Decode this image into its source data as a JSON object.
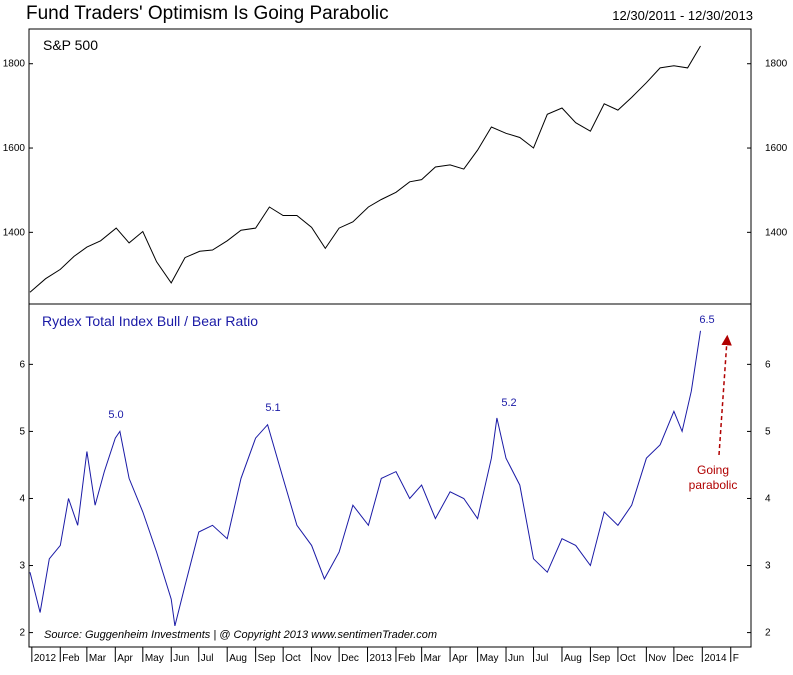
{
  "title": "Fund Traders' Optimism Is Going Parabolic",
  "date_range": "12/30/2011 - 12/30/2013",
  "source": "Source:  Guggenheim Investments  |  @ Copyright 2013  www.sentimenTrader.com",
  "colors": {
    "sp500_line": "#000000",
    "ratio_line": "#1a1aa6",
    "annotation": "#b00000",
    "frame": "#000000"
  },
  "chart_data": [
    {
      "type": "line",
      "title": "S&P 500",
      "x_range": [
        "2011-12-30",
        "2013-12-30"
      ],
      "ylim": [
        1230,
        1880
      ],
      "y_ticks": [
        1400,
        1600,
        1800
      ],
      "y_tick_labels": [
        "1400",
        "1600",
        "1800"
      ],
      "series": [
        {
          "color": "#000000",
          "x": [
            "2011-12-30",
            "2012-01-16",
            "2012-02-01",
            "2012-02-16",
            "2012-03-01",
            "2012-03-16",
            "2012-04-02",
            "2012-04-16",
            "2012-05-01",
            "2012-05-16",
            "2012-06-01",
            "2012-06-16",
            "2012-07-02",
            "2012-07-16",
            "2012-08-01",
            "2012-08-16",
            "2012-09-01",
            "2012-09-16",
            "2012-10-01",
            "2012-10-16",
            "2012-11-01",
            "2012-11-16",
            "2012-12-01",
            "2012-12-16",
            "2013-01-02",
            "2013-01-16",
            "2013-02-01",
            "2013-02-16",
            "2013-03-01",
            "2013-03-16",
            "2013-04-01",
            "2013-04-16",
            "2013-05-01",
            "2013-05-16",
            "2013-06-01",
            "2013-06-16",
            "2013-07-01",
            "2013-07-16",
            "2013-08-01",
            "2013-08-16",
            "2013-09-01",
            "2013-09-16",
            "2013-10-01",
            "2013-10-16",
            "2013-11-01",
            "2013-11-16",
            "2013-12-01",
            "2013-12-16",
            "2013-12-30"
          ],
          "values": [
            1258,
            1290,
            1312,
            1343,
            1365,
            1380,
            1410,
            1375,
            1402,
            1330,
            1280,
            1340,
            1355,
            1358,
            1380,
            1405,
            1410,
            1460,
            1440,
            1440,
            1412,
            1362,
            1410,
            1425,
            1460,
            1478,
            1495,
            1520,
            1525,
            1555,
            1560,
            1550,
            1595,
            1650,
            1635,
            1625,
            1600,
            1680,
            1695,
            1660,
            1640,
            1705,
            1690,
            1720,
            1755,
            1790,
            1795,
            1790,
            1842
          ]
        }
      ]
    },
    {
      "type": "line",
      "title": "Rydex Total Index Bull / Bear Ratio",
      "x_range": [
        "2011-12-30",
        "2013-12-30"
      ],
      "ylim": [
        1.8,
        6.9
      ],
      "y_ticks": [
        2,
        3,
        4,
        5,
        6
      ],
      "y_tick_labels": [
        "2",
        "3",
        "4",
        "5",
        "6"
      ],
      "x_tick_labels": [
        "2012",
        "Feb",
        "Mar",
        "Apr",
        "May",
        "Jun",
        "Jul",
        "Aug",
        "Sep",
        "Oct",
        "Nov",
        "Dec",
        "2013",
        "Feb",
        "Mar",
        "Apr",
        "May",
        "Jun",
        "Jul",
        "Aug",
        "Sep",
        "Oct",
        "Nov",
        "Dec",
        "2014",
        "F"
      ],
      "series": [
        {
          "color": "#1a1aa6",
          "x": [
            "2011-12-30",
            "2012-01-10",
            "2012-01-20",
            "2012-02-01",
            "2012-02-10",
            "2012-02-20",
            "2012-03-01",
            "2012-03-10",
            "2012-03-20",
            "2012-04-01",
            "2012-04-06",
            "2012-04-16",
            "2012-05-01",
            "2012-05-16",
            "2012-06-01",
            "2012-06-05",
            "2012-06-16",
            "2012-07-01",
            "2012-07-16",
            "2012-08-01",
            "2012-08-16",
            "2012-09-01",
            "2012-09-14",
            "2012-10-01",
            "2012-10-16",
            "2012-11-01",
            "2012-11-15",
            "2012-12-01",
            "2012-12-16",
            "2013-01-02",
            "2013-01-16",
            "2013-02-01",
            "2013-02-16",
            "2013-03-01",
            "2013-03-16",
            "2013-04-01",
            "2013-04-16",
            "2013-05-01",
            "2013-05-16",
            "2013-05-22",
            "2013-06-01",
            "2013-06-16",
            "2013-07-01",
            "2013-07-16",
            "2013-08-01",
            "2013-08-16",
            "2013-09-01",
            "2013-09-16",
            "2013-10-01",
            "2013-10-16",
            "2013-11-01",
            "2013-11-16",
            "2013-12-01",
            "2013-12-10",
            "2013-12-20",
            "2013-12-30"
          ],
          "values": [
            2.9,
            2.3,
            3.1,
            3.3,
            4.0,
            3.6,
            4.7,
            3.9,
            4.4,
            4.9,
            5.0,
            4.3,
            3.8,
            3.2,
            2.5,
            2.1,
            2.7,
            3.5,
            3.6,
            3.4,
            4.3,
            4.9,
            5.1,
            4.3,
            3.6,
            3.3,
            2.8,
            3.2,
            3.9,
            3.6,
            4.3,
            4.4,
            4.0,
            4.2,
            3.7,
            4.1,
            4.0,
            3.7,
            4.6,
            5.2,
            4.6,
            4.2,
            3.1,
            2.9,
            3.4,
            3.3,
            3.0,
            3.8,
            3.6,
            3.9,
            4.6,
            4.8,
            5.3,
            5.0,
            5.6,
            6.5
          ]
        }
      ]
    }
  ],
  "annotations": {
    "peak_2012_apr": "5.0",
    "peak_2012_sep": "5.1",
    "peak_2013_may": "5.2",
    "peak_2013_dec": "6.5",
    "going_line1": "Going",
    "going_line2": "parabolic"
  }
}
